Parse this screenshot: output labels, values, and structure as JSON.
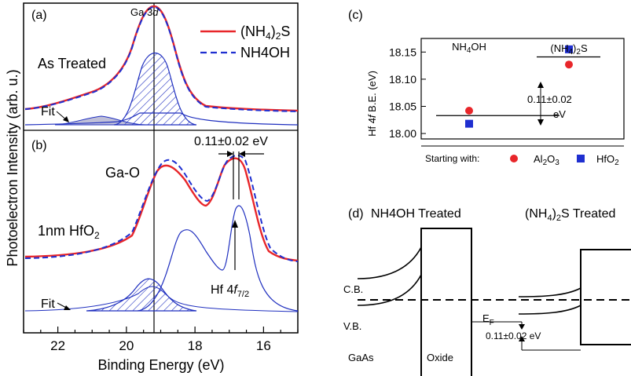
{
  "colors": {
    "red": "#e8262a",
    "blue": "#1f2fd0",
    "fit_blue": "#1f2fbf",
    "grey_fill": "#bfbfd8"
  },
  "left": {
    "ylabel": "Photoelectron Intensity (arb. u.)",
    "xlabel": "Binding Energy (eV)",
    "xlim": [
      23,
      15
    ],
    "xticks": [
      "22",
      "20",
      "18",
      "16"
    ],
    "panel_a": {
      "tag": "(a)",
      "peak_label": "Ga 3",
      "peak_label_italic": "d",
      "treatment": "As Treated",
      "fit_label": "Fit",
      "legend": [
        {
          "key": "red",
          "label_pre": "(NH",
          "label_sub": "4",
          "label_mid": ")",
          "label_sub2": "2",
          "label_post": "S"
        },
        {
          "key": "blue",
          "label_pre": "NH4OH",
          "label_sub": "",
          "label_mid": "",
          "label_sub2": "",
          "label_post": ""
        }
      ]
    },
    "panel_b": {
      "tag": "(b)",
      "gao_label": "Ga-O",
      "treatment_pre": "1nm HfO",
      "treatment_sub": "2",
      "fit_label": "Fit",
      "shift_label": "0.11±0.02 eV",
      "hf_label_pre": "Hf 4",
      "hf_label_italic": "f",
      "hf_label_sub": "7/2"
    }
  },
  "chart_data": [
    {
      "type": "scatter",
      "title": "(c)",
      "ylabel_pre": "Hf 4",
      "ylabel_italic": "f",
      "ylabel_post": " B.E. (eV)",
      "ylim": [
        17.99,
        18.175
      ],
      "yticks": [
        "18.00",
        "18.05",
        "18.10",
        "18.15"
      ],
      "categories_pre": [
        "NH",
        "(NH"
      ],
      "categories_sub": [
        "4",
        "4"
      ],
      "categories_post": [
        "OH",
        ")"
      ],
      "categories_sub2": [
        "",
        "2"
      ],
      "categories_post2": [
        "",
        "S"
      ],
      "series": [
        {
          "name": "Al2O3",
          "color": "#e8262a",
          "shape": "circle",
          "values": [
            18.042,
            18.127
          ]
        },
        {
          "name": "HfO2",
          "color": "#1f2fd0",
          "shape": "square",
          "values": [
            18.018,
            18.155
          ]
        }
      ],
      "guide_levels": [
        18.033,
        18.141
      ],
      "annotation_line1": "0.11±0.02",
      "annotation_line2": "eV",
      "footer_label": "Starting with:",
      "legend_al_pre": "Al",
      "legend_al_sub1": "2",
      "legend_al_mid": "O",
      "legend_al_sub2": "3",
      "legend_hf_pre": "HfO",
      "legend_hf_sub": "2"
    }
  ],
  "panel_d": {
    "tag": "(d)",
    "left_title": "NH4OH Treated",
    "right_title_pre": "(NH",
    "right_title_sub": "4",
    "right_title_mid": ")",
    "right_title_sub2": "2",
    "right_title_post": "S Treated",
    "cb": "C.B.",
    "vb": "V.B.",
    "ef": "E",
    "ef_sub": "F",
    "gaas": "GaAs",
    "oxide": "Oxide",
    "offset": "0.11±0.02 eV"
  }
}
